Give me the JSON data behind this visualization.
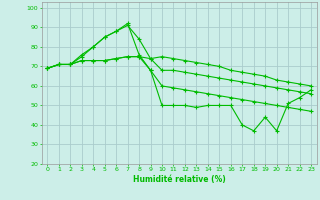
{
  "xlabel": "Humidité relative (%)",
  "background_color": "#cceee8",
  "grid_color": "#aacccc",
  "line_color": "#00bb00",
  "xlim": [
    -0.5,
    23.5
  ],
  "ylim": [
    20,
    103
  ],
  "xticks": [
    0,
    1,
    2,
    3,
    4,
    5,
    6,
    7,
    8,
    9,
    10,
    11,
    12,
    13,
    14,
    15,
    16,
    17,
    18,
    19,
    20,
    21,
    22,
    23
  ],
  "yticks": [
    20,
    30,
    40,
    50,
    60,
    70,
    80,
    90,
    100
  ],
  "lines": [
    [
      69,
      71,
      71,
      76,
      80,
      85,
      88,
      91,
      84,
      74,
      75,
      74,
      73,
      72,
      71,
      70,
      68,
      67,
      66,
      65,
      63,
      62,
      61,
      60
    ],
    [
      69,
      71,
      71,
      75,
      80,
      85,
      88,
      92,
      76,
      68,
      50,
      50,
      50,
      49,
      50,
      50,
      50,
      40,
      37,
      44,
      37,
      51,
      54,
      58
    ],
    [
      69,
      71,
      71,
      73,
      73,
      73,
      74,
      75,
      75,
      68,
      60,
      59,
      58,
      57,
      56,
      55,
      54,
      53,
      52,
      51,
      50,
      49,
      48,
      47
    ],
    [
      69,
      71,
      71,
      73,
      73,
      73,
      74,
      75,
      75,
      74,
      68,
      68,
      67,
      66,
      65,
      64,
      63,
      62,
      61,
      60,
      59,
      58,
      57,
      56
    ]
  ]
}
